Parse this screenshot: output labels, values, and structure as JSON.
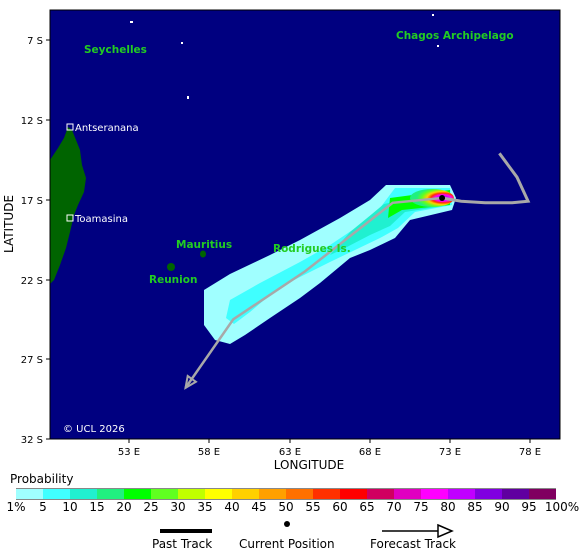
{
  "map": {
    "lat_labels": [
      "7 S",
      "12 S",
      "17 S",
      "22 S",
      "27 S",
      "32 S"
    ],
    "lon_labels": [
      "53 E",
      "58 E",
      "63 E",
      "68 E",
      "73 E",
      "78 E"
    ],
    "y_axis_title": "LATITUDE",
    "x_axis_title": "LONGITUDE",
    "copyright": "© UCL 2026",
    "ocean_color": "#000080",
    "land_color": "#006400",
    "places": {
      "seychelles": "Seychelles",
      "chagos": "Chagos Archipelago",
      "antseranana": "Antseranana",
      "toamasina": "Toamasina",
      "mauritius": "Mauritius",
      "reunion": "Reunion",
      "rodrigues": "Rodrigues Is."
    },
    "storm": {
      "past_track": [
        [
          76.2,
          -14.1
        ],
        [
          77.3,
          -15.6
        ],
        [
          78.0,
          -17.1
        ],
        [
          77.0,
          -17.2
        ],
        [
          75.3,
          -17.2
        ],
        [
          73.8,
          -17.1
        ],
        [
          72.6,
          -16.9
        ]
      ],
      "current_position": [
        72.6,
        -16.9
      ],
      "forecast_track": [
        [
          72.6,
          -16.9
        ],
        [
          69.5,
          -17.2
        ],
        [
          64.0,
          -21.5
        ],
        [
          59.5,
          -24.5
        ],
        [
          56.5,
          -28.8
        ]
      ]
    }
  },
  "legend": {
    "title": "Probability",
    "labels": [
      "1%",
      "5",
      "10",
      "15",
      "20",
      "25",
      "30",
      "35",
      "40",
      "45",
      "50",
      "55",
      "60",
      "65",
      "70",
      "75",
      "80",
      "85",
      "90",
      "95",
      "100%"
    ],
    "colors": [
      "#a0ffff",
      "#40ffff",
      "#20f0d0",
      "#20f080",
      "#00ff00",
      "#60ff20",
      "#c0ff00",
      "#ffff00",
      "#ffd000",
      "#ffa000",
      "#ff7000",
      "#ff3000",
      "#ff0000",
      "#d00060",
      "#e000c0",
      "#ff00ff",
      "#c000ff",
      "#8000e0",
      "#6000a0",
      "#800060"
    ],
    "past_track_label": "Past Track",
    "current_position_label": "Current Position",
    "forecast_track_label": "Forecast Track"
  }
}
